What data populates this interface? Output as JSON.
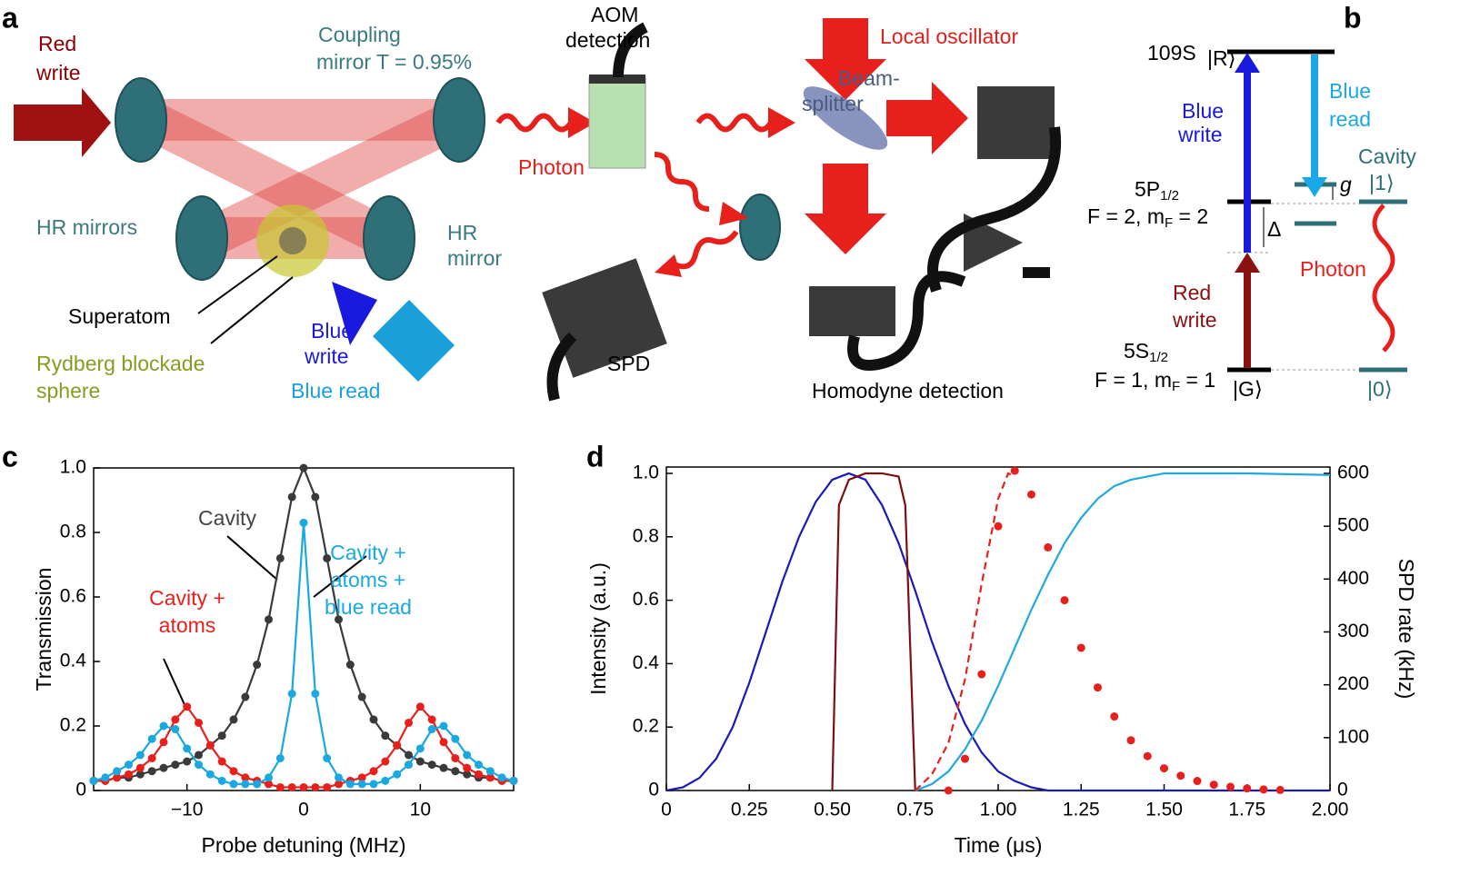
{
  "panel_labels": [
    "a",
    "b",
    "c",
    "d"
  ],
  "diagram_a": {
    "red_write": [
      "Red",
      "write"
    ],
    "coupling": [
      "Coupling",
      "mirror T = 0.95%"
    ],
    "aom": [
      "AOM",
      "detection"
    ],
    "beam_splitter": [
      "Beam-",
      "splitter"
    ],
    "local_oscillator": "Local oscillator",
    "photon": "Photon",
    "hr_mirrors": "HR mirrors",
    "hr_mirror": [
      "HR",
      "mirror"
    ],
    "superatom": "Superatom",
    "blue_write": [
      "Blue",
      "write"
    ],
    "rydberg": [
      "Rydberg blockade",
      "sphere"
    ],
    "blue_read": "Blue read",
    "spd": "SPD",
    "homodyne": "Homodyne detection"
  },
  "diagram_b": {
    "ket_r": "|R⟩",
    "level_r": "109S",
    "blue_write": [
      "Blue",
      "write"
    ],
    "blue_read": [
      "Blue",
      "read"
    ],
    "cavity": "Cavity",
    "ket_1": "|1⟩",
    "g": "g",
    "level_p": [
      "5P",
      "1/2"
    ],
    "level_p_f": [
      "F = 2, m",
      "F",
      " = 2"
    ],
    "delta": "Δ",
    "photon": "Photon",
    "red_write": [
      "Red",
      "write"
    ],
    "level_s": [
      "5S",
      "1/2"
    ],
    "level_s_f": [
      "F = 1, m",
      "F",
      " = 1"
    ],
    "ket_g": "|G⟩",
    "ket_0": "|0⟩"
  },
  "chart_data": [
    {
      "type": "line",
      "xlabel": "Probe detuning (MHz)",
      "ylabel": "Transmission",
      "xlim": [
        -18,
        18
      ],
      "ylim": [
        0,
        1
      ],
      "xticks": [
        {
          "value": -10,
          "label": "−10"
        },
        0,
        10
      ],
      "yticks": [
        0,
        0.2,
        0.4,
        0.6,
        0.8,
        {
          "value": 1,
          "label": "1.0"
        }
      ],
      "markers": true,
      "x": [
        -18,
        -17,
        -16,
        -15,
        -14,
        -13,
        -12,
        -11,
        -10,
        -9,
        -8,
        -7,
        -6,
        -5,
        -4,
        -3,
        -2,
        -1,
        0,
        1,
        2,
        3,
        4,
        5,
        6,
        7,
        8,
        9,
        10,
        11,
        12,
        13,
        14,
        15,
        16,
        17,
        18
      ],
      "series": [
        {
          "name": "Cavity",
          "color": "#3a3a3a",
          "values": [
            0.03,
            0.03,
            0.04,
            0.04,
            0.05,
            0.06,
            0.07,
            0.08,
            0.09,
            0.11,
            0.14,
            0.17,
            0.22,
            0.29,
            0.39,
            0.53,
            0.72,
            0.91,
            1,
            0.91,
            0.72,
            0.53,
            0.39,
            0.29,
            0.22,
            0.17,
            0.14,
            0.11,
            0.09,
            0.08,
            0.07,
            0.06,
            0.05,
            0.04,
            0.04,
            0.03,
            0.03
          ]
        },
        {
          "name": "Cavity + atoms",
          "color": "#e8201c",
          "values": [
            0.03,
            0.03,
            0.04,
            0.05,
            0.07,
            0.1,
            0.15,
            0.22,
            0.26,
            0.21,
            0.14,
            0.09,
            0.06,
            0.04,
            0.03,
            0.02,
            0.01,
            0.01,
            0.01,
            0.01,
            0.01,
            0.02,
            0.03,
            0.04,
            0.06,
            0.09,
            0.14,
            0.21,
            0.26,
            0.22,
            0.15,
            0.1,
            0.07,
            0.05,
            0.04,
            0.03,
            0.03
          ]
        },
        {
          "name": "Cavity + atoms + blue read",
          "color": "#1aa8e0",
          "values": [
            0.03,
            0.04,
            0.06,
            0.08,
            0.11,
            0.16,
            0.2,
            0.19,
            0.13,
            0.08,
            0.05,
            0.03,
            0.02,
            0.02,
            0.02,
            0.04,
            0.1,
            0.3,
            0.83,
            0.3,
            0.1,
            0.04,
            0.02,
            0.02,
            0.02,
            0.03,
            0.05,
            0.08,
            0.13,
            0.19,
            0.2,
            0.16,
            0.11,
            0.08,
            0.06,
            0.04,
            0.03
          ]
        }
      ],
      "annotations": [
        [
          "Cavity"
        ],
        [
          "Cavity +",
          "atoms"
        ],
        [
          "Cavity +",
          "atoms +",
          "blue read"
        ]
      ]
    },
    {
      "type": "line",
      "xlabel": "Time (μs)",
      "ylabel": "Intensity (a.u.)",
      "y2label": "SPD rate (kHz)",
      "xlim": [
        0,
        2
      ],
      "ylim": [
        0,
        1.02
      ],
      "y2lim": [
        0,
        612
      ],
      "xticks": [
        0,
        0.25,
        {
          "value": 0.5,
          "label": "0.50"
        },
        0.75,
        {
          "value": 1,
          "label": "1.00"
        },
        1.25,
        {
          "value": 1.5,
          "label": "1.50"
        },
        1.75,
        {
          "value": 2,
          "label": "2.00"
        }
      ],
      "yticks": [
        0,
        0.2,
        0.4,
        0.6,
        0.8,
        {
          "value": 1,
          "label": "1.0"
        }
      ],
      "y2ticks": [
        0,
        100,
        200,
        300,
        400,
        500,
        600
      ],
      "series": [
        {
          "color": "#1a1ab8",
          "x": [
            0,
            0.05,
            0.1,
            0.15,
            0.2,
            0.25,
            0.3,
            0.35,
            0.4,
            0.45,
            0.5,
            0.55,
            0.6,
            0.65,
            0.7,
            0.75,
            0.8,
            0.85,
            0.9,
            0.95,
            1,
            1.05,
            1.1,
            1.15,
            2
          ],
          "values": [
            0,
            0.01,
            0.04,
            0.1,
            0.2,
            0.34,
            0.5,
            0.66,
            0.8,
            0.91,
            0.98,
            1,
            0.98,
            0.9,
            0.78,
            0.63,
            0.47,
            0.33,
            0.21,
            0.12,
            0.06,
            0.03,
            0.01,
            0,
            0
          ]
        },
        {
          "color": "#7a1010",
          "x": [
            0.5,
            0.52,
            0.55,
            0.6,
            0.65,
            0.7,
            0.72,
            0.75
          ],
          "values": [
            0,
            0.9,
            0.98,
            1,
            1,
            0.99,
            0.9,
            0
          ]
        },
        {
          "color": "#22a8e0",
          "x": [
            0.75,
            0.8,
            0.85,
            0.9,
            0.95,
            1,
            1.05,
            1.1,
            1.15,
            1.2,
            1.25,
            1.3,
            1.35,
            1.4,
            1.45,
            1.5,
            1.6,
            1.75,
            2
          ],
          "values": [
            0,
            0.02,
            0.06,
            0.13,
            0.22,
            0.33,
            0.45,
            0.57,
            0.68,
            0.78,
            0.86,
            0.92,
            0.96,
            0.98,
            0.99,
            1,
            1,
            1,
            0.995
          ]
        },
        {
          "color": "#e8201c",
          "style": "dashed",
          "x": [
            0.75,
            0.8,
            0.85,
            0.9,
            0.95,
            1,
            1.03,
            1.05
          ],
          "values": [
            0,
            0.05,
            0.15,
            0.35,
            0.65,
            0.92,
            1,
            0.99
          ]
        },
        {
          "color": "#e8201c",
          "style": "dots",
          "axis": "y2",
          "x": [
            0.85,
            0.9,
            0.95,
            1,
            1.05,
            1.1,
            1.15,
            1.2,
            1.25,
            1.3,
            1.35,
            1.4,
            1.45,
            1.5,
            1.55,
            1.6,
            1.65,
            1.7,
            1.75,
            1.8,
            1.85
          ],
          "values": [
            0,
            60,
            220,
            500,
            605,
            560,
            460,
            360,
            270,
            195,
            140,
            95,
            65,
            42,
            28,
            18,
            11,
            7,
            4,
            2,
            1
          ]
        }
      ]
    }
  ]
}
